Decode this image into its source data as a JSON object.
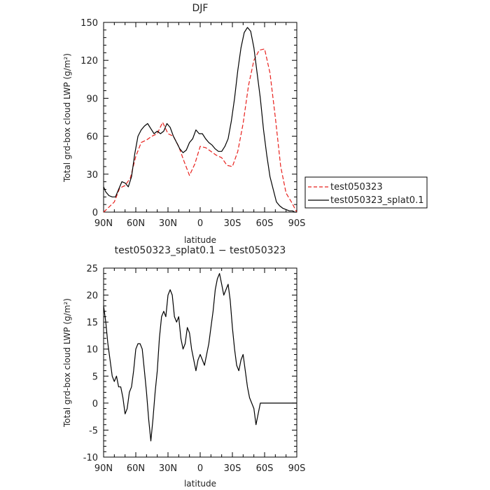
{
  "chart_data": [
    {
      "type": "line",
      "title": "DJF",
      "xlabel": "latitude",
      "ylabel": "Total grd-box cloud LWP (g/m²)",
      "x_ticks": [
        "90N",
        "60N",
        "30N",
        "0",
        "30S",
        "60S",
        "90S"
      ],
      "x_values_note": "",
      "xlim": [
        -90,
        90
      ],
      "ylim": [
        0,
        150
      ],
      "y_ticks": [
        0,
        30,
        60,
        90,
        120,
        150
      ],
      "legend": {
        "position": "right",
        "entries": [
          "test050323",
          "test050323_splat0.1"
        ]
      },
      "series": [
        {
          "name": "test050323",
          "color": "#e8201c",
          "dash": "dashed",
          "x": [
            -90,
            -85,
            -80,
            -75,
            -70,
            -65,
            -60,
            -55,
            -50,
            -45,
            -40,
            -35,
            -30,
            -25,
            -20,
            -15,
            -10,
            -5,
            0,
            5,
            10,
            15,
            20,
            25,
            30,
            35,
            40,
            45,
            50,
            55,
            60,
            65,
            70,
            75,
            80,
            85,
            90
          ],
          "y": [
            0,
            4,
            8,
            19,
            21,
            27,
            44,
            55,
            57,
            60,
            62,
            71,
            62,
            60,
            52,
            40,
            29,
            38,
            52,
            51,
            48,
            45,
            43,
            37,
            36,
            48,
            70,
            100,
            120,
            128,
            129,
            110,
            75,
            36,
            15,
            8,
            0
          ]
        },
        {
          "name": "test050323_splat0.1",
          "color": "#000000",
          "dash": "solid",
          "x": [
            -90,
            -88,
            -85,
            -82,
            -79,
            -76,
            -73,
            -70,
            -67,
            -64,
            -61,
            -58,
            -55,
            -52,
            -49,
            -46,
            -43,
            -40,
            -37,
            -34,
            -31,
            -28,
            -25,
            -22,
            -19,
            -16,
            -13,
            -10,
            -7,
            -4,
            -1,
            2,
            5,
            8,
            11,
            14,
            17,
            20,
            23,
            26,
            29,
            32,
            35,
            38,
            41,
            44,
            47,
            50,
            53,
            56,
            59,
            62,
            65,
            68,
            71,
            74,
            77,
            80,
            83,
            86,
            88,
            90
          ],
          "y": [
            20,
            16,
            13,
            12,
            12,
            18,
            24,
            23,
            20,
            28,
            46,
            60,
            65,
            68,
            70,
            66,
            62,
            64,
            62,
            64,
            70,
            67,
            60,
            55,
            50,
            47,
            49,
            55,
            58,
            65,
            62,
            62,
            58,
            55,
            53,
            50,
            48,
            48,
            52,
            58,
            72,
            90,
            112,
            130,
            142,
            146,
            143,
            130,
            110,
            90,
            65,
            45,
            28,
            18,
            8,
            5,
            3,
            2,
            1,
            1,
            0,
            0
          ]
        }
      ]
    },
    {
      "type": "line",
      "title": "test050323_splat0.1 − test050323",
      "xlabel": "latitude",
      "ylabel": "Total grd-box cloud LWP (g/m²)",
      "x_ticks": [
        "90N",
        "60N",
        "30N",
        "0",
        "30S",
        "60S",
        "90S"
      ],
      "xlim": [
        -90,
        90
      ],
      "ylim": [
        -10,
        25
      ],
      "y_ticks": [
        -10,
        -5,
        0,
        5,
        10,
        15,
        20,
        25
      ],
      "series": [
        {
          "color": "#000000",
          "dash": "solid",
          "x": [
            -90,
            -88,
            -86,
            -84,
            -82,
            -80,
            -78,
            -76,
            -74,
            -72,
            -70,
            -68,
            -66,
            -64,
            -62,
            -60,
            -58,
            -56,
            -54,
            -52,
            -50,
            -48,
            -46,
            -44,
            -42,
            -40,
            -38,
            -36,
            -34,
            -32,
            -30,
            -28,
            -26,
            -24,
            -22,
            -20,
            -18,
            -16,
            -14,
            -12,
            -10,
            -8,
            -6,
            -4,
            -2,
            0,
            2,
            4,
            6,
            8,
            10,
            12,
            14,
            16,
            18,
            20,
            22,
            24,
            26,
            28,
            30,
            32,
            34,
            36,
            38,
            40,
            42,
            44,
            46,
            48,
            50,
            52,
            54,
            56,
            58,
            60,
            62,
            64,
            66,
            68,
            70,
            72,
            74,
            76,
            78,
            80,
            82,
            84,
            86,
            88,
            90
          ],
          "y": [
            18,
            15,
            11,
            8,
            5,
            4,
            5,
            3,
            3,
            1,
            -2,
            -1,
            2,
            3,
            6,
            10,
            11,
            11,
            10,
            6,
            2,
            -3,
            -7,
            -3,
            2,
            6,
            12,
            16,
            17,
            16,
            20,
            21,
            20,
            16,
            15,
            16,
            12,
            10,
            11,
            14,
            13,
            10,
            8,
            6,
            8,
            9,
            8,
            7,
            9,
            11,
            14,
            17,
            21,
            23,
            24,
            22,
            20,
            21,
            22,
            19,
            14,
            10,
            7,
            6,
            8,
            9,
            6,
            3,
            1,
            0,
            -1,
            -4,
            -2,
            0,
            0,
            0,
            0,
            0,
            0,
            0,
            0,
            0,
            0,
            0,
            0,
            0,
            0,
            0,
            0,
            0,
            0
          ]
        }
      ]
    }
  ]
}
